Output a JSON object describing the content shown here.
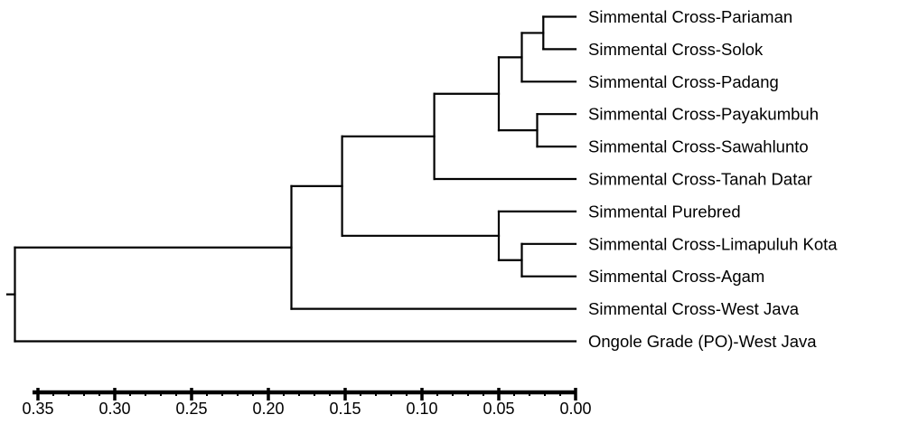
{
  "leaves": [
    "Simmental Cross-Pariaman",
    "Simmental Cross-Solok",
    "Simmental Cross-Padang",
    "Simmental Cross-Payakumbuh",
    "Simmental Cross-Sawahlunto",
    "Simmental Cross-Tanah Datar",
    "Simmental Purebred",
    "Simmental Cross-Limapuluh Kota",
    "Simmental Cross-Agam",
    "Simmental Cross-West Java",
    "Ongole Grade (PO)-West Java"
  ],
  "tree": {
    "h": 0.365,
    "children": [
      {
        "h": 0.185,
        "children": [
          {
            "h": 0.152,
            "children": [
              {
                "h": 0.092,
                "children": [
                  {
                    "h": 0.05,
                    "children": [
                      {
                        "h": 0.035,
                        "children": [
                          {
                            "h": 0.021,
                            "children": [
                              {
                                "leaf": 0
                              },
                              {
                                "leaf": 1
                              }
                            ]
                          },
                          {
                            "leaf": 2
                          }
                        ]
                      },
                      {
                        "h": 0.025,
                        "children": [
                          {
                            "leaf": 3
                          },
                          {
                            "leaf": 4
                          }
                        ]
                      }
                    ]
                  },
                  {
                    "leaf": 5
                  }
                ]
              },
              {
                "h": 0.05,
                "children": [
                  {
                    "leaf": 6
                  },
                  {
                    "h": 0.035,
                    "children": [
                      {
                        "leaf": 7
                      },
                      {
                        "leaf": 8
                      }
                    ]
                  }
                ]
              }
            ]
          },
          {
            "leaf": 9
          }
        ]
      },
      {
        "leaf": 10
      }
    ]
  },
  "axis": {
    "min": 0.0,
    "max": 0.35,
    "major_ticks": [
      "0.35",
      "0.30",
      "0.25",
      "0.20",
      "0.15",
      "0.10",
      "0.05",
      "0.00"
    ],
    "minor_step": 0.01
  }
}
